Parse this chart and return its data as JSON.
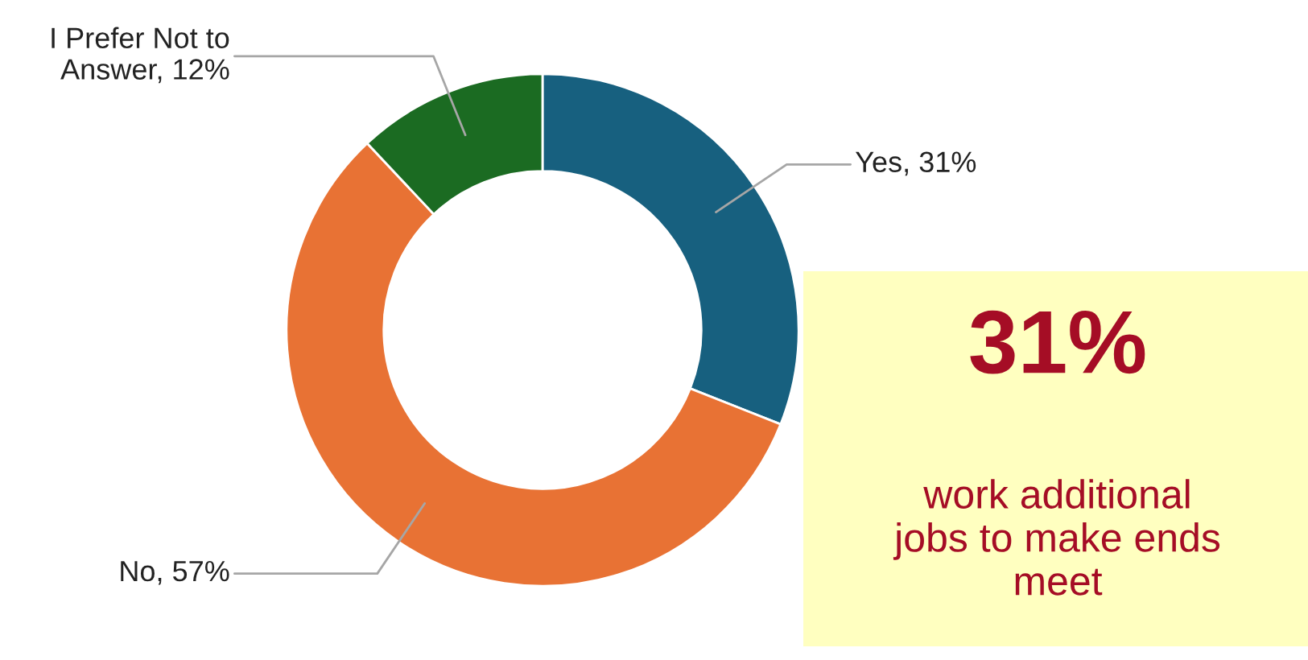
{
  "chart_data": {
    "type": "donut",
    "categories": [
      "Yes",
      "No",
      "I Prefer Not to Answer"
    ],
    "values": [
      31,
      57,
      12
    ],
    "colors": [
      "#17607f",
      "#e87234",
      "#1b6b22"
    ],
    "value_labels": [
      "31%",
      "57%",
      "12%"
    ],
    "annotations": [
      "31%",
      "work additional jobs to make ends meet"
    ]
  }
}
